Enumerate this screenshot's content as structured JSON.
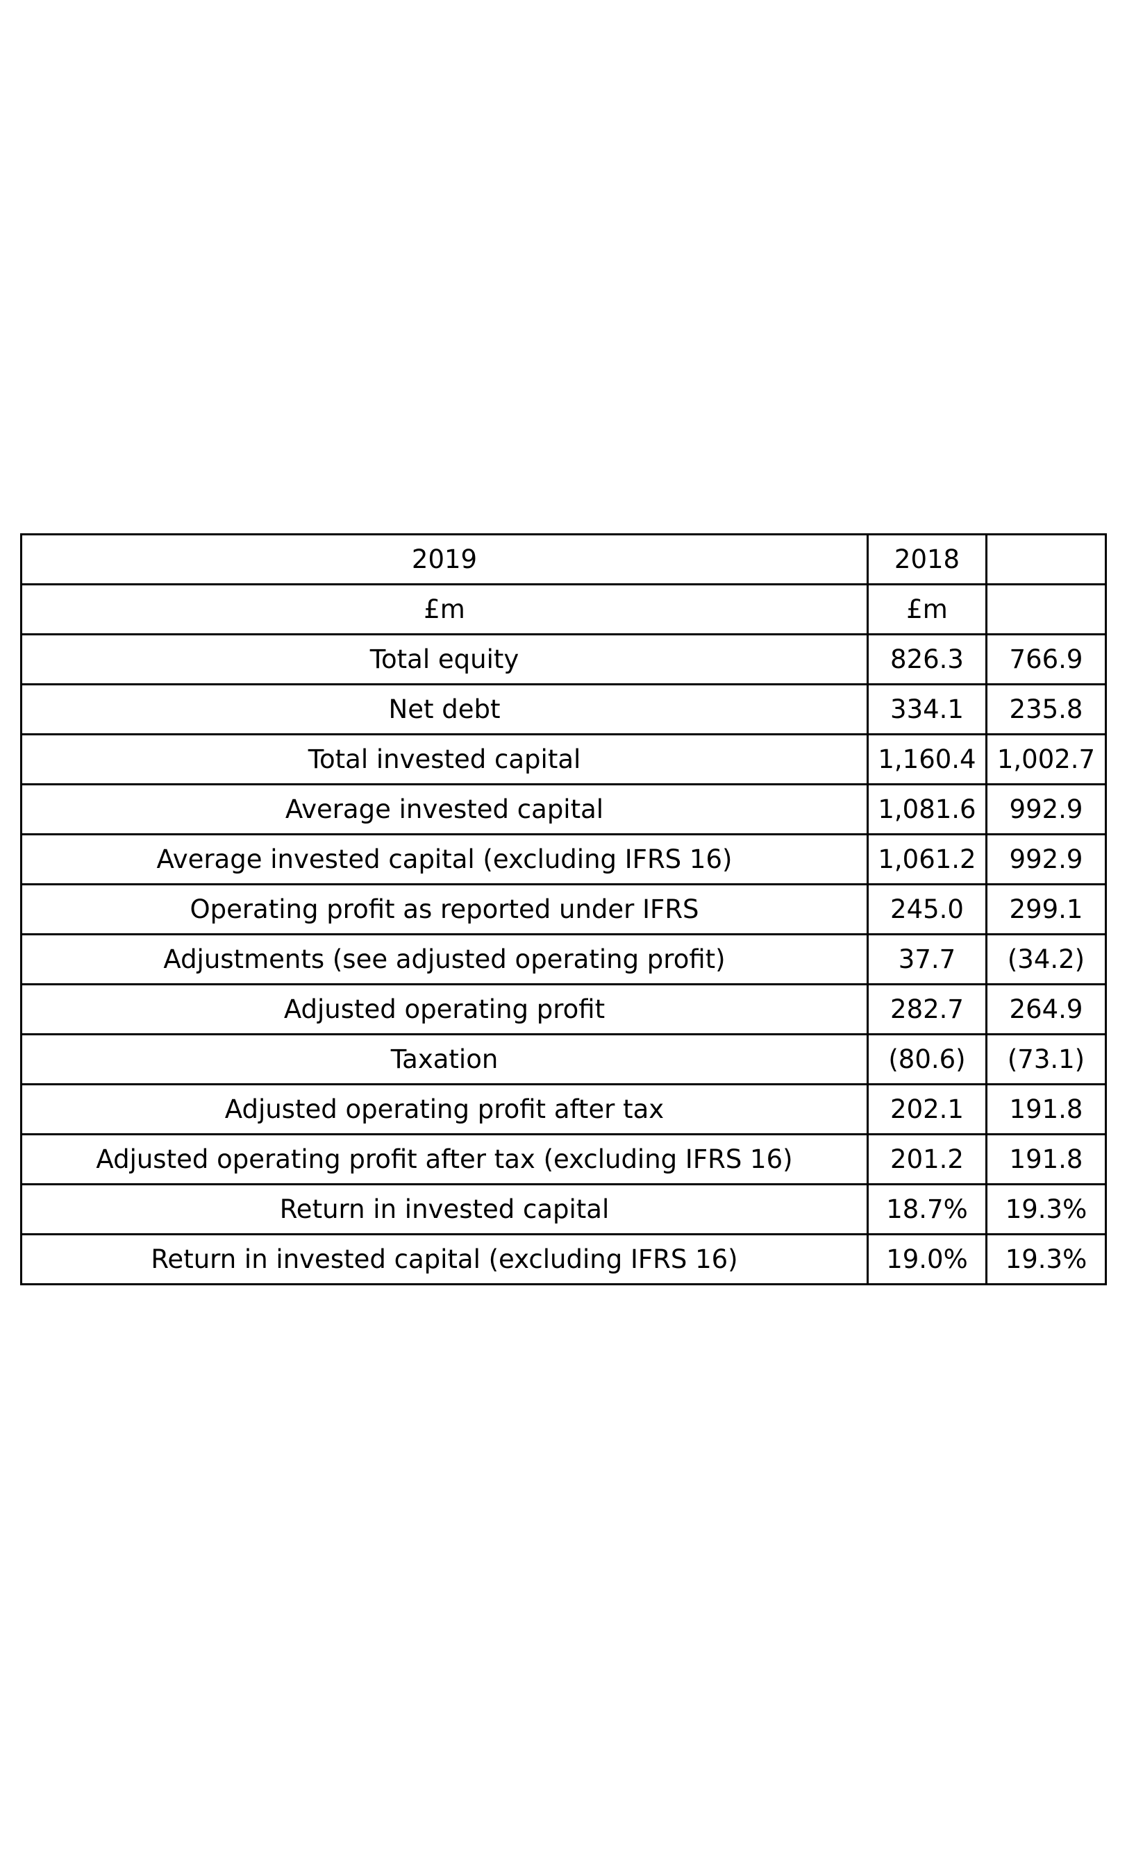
{
  "table": {
    "header_rows": [
      [
        "2019",
        "2018",
        ""
      ],
      [
        "£m",
        "£m",
        ""
      ]
    ],
    "rows": [
      [
        "Total equity",
        "826.3",
        "766.9"
      ],
      [
        "Net debt",
        "334.1",
        "235.8"
      ],
      [
        "Total invested capital",
        "1,160.4",
        "1,002.7"
      ],
      [
        "Average invested capital",
        "1,081.6",
        "992.9"
      ],
      [
        "Average invested capital (excluding IFRS 16)",
        "1,061.2",
        "992.9"
      ],
      [
        "Operating profit as reported under IFRS",
        "245.0",
        "299.1"
      ],
      [
        "Adjustments (see adjusted operating profit)",
        "37.7",
        "(34.2)"
      ],
      [
        "Adjusted operating profit",
        "282.7",
        "264.9"
      ],
      [
        "Taxation",
        "(80.6)",
        "(73.1)"
      ],
      [
        "Adjusted operating profit after tax",
        "202.1",
        "191.8"
      ],
      [
        "Adjusted operating profit after tax (excluding IFRS 16)",
        "201.2",
        "191.8"
      ],
      [
        "Return in invested capital",
        "18.7%",
        "19.3%"
      ],
      [
        "Return in invested capital (excluding IFRS 16)",
        "19.0%",
        "19.3%"
      ]
    ]
  }
}
